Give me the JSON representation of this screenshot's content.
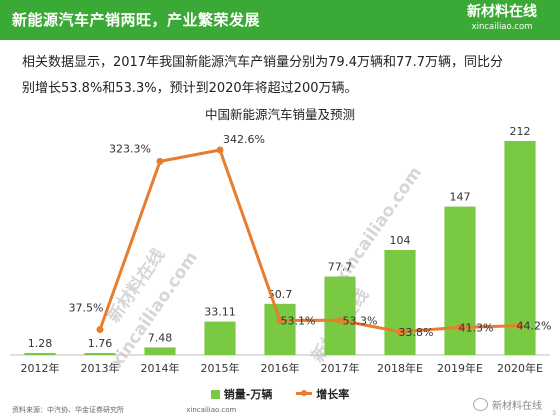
{
  "header": {
    "title": "新能源汽车产销两旺，产业繁荣发展",
    "logo_cn": "新材料在线",
    "logo_url": "xincailiao.com"
  },
  "intro": {
    "line1": "相关数据显示，2017年我国新能源汽车产销量分别为79.4万辆和77.7万辆，同比分",
    "line2": "别增长53.8%和53.3%，预计到2020年将超过200万辆。"
  },
  "watermark": {
    "text": "新材料在线",
    "url": "xincailiao.com"
  },
  "footer": {
    "source": "资料来源：中汽协、华金证券研究所",
    "center_url": "xincailiao.com",
    "brand": "新材料在线",
    "page": "3"
  },
  "colors": {
    "header": "#3aa935",
    "bar": "#7ac943",
    "line": "#e87d2d"
  },
  "chart_data": {
    "type": "bar",
    "title": "中国新能源汽车销量及预测",
    "categories": [
      "2012年",
      "2013年",
      "2014年",
      "2015年",
      "2016年",
      "2017年",
      "2018年E",
      "2019年E",
      "2020年E"
    ],
    "series": [
      {
        "name": "销量-万辆",
        "type": "bar",
        "values": [
          1.28,
          1.76,
          7.48,
          33.11,
          50.7,
          77.7,
          104,
          147,
          212
        ],
        "labels": [
          "1.28",
          "1.76",
          "7.48",
          "33.11",
          "50.7",
          "77.7",
          "104",
          "147",
          "212"
        ]
      },
      {
        "name": "增长率",
        "type": "line",
        "values": [
          null,
          37.5,
          323.3,
          342.6,
          53.1,
          53.3,
          33.8,
          41.3,
          44.2
        ],
        "labels": [
          "",
          "37.5%",
          "323.3%",
          "342.6%",
          "53.1%",
          "53.3%",
          "33.8%",
          "41.3%",
          "44.2%"
        ]
      }
    ],
    "legend": "bottom",
    "grid": false
  }
}
